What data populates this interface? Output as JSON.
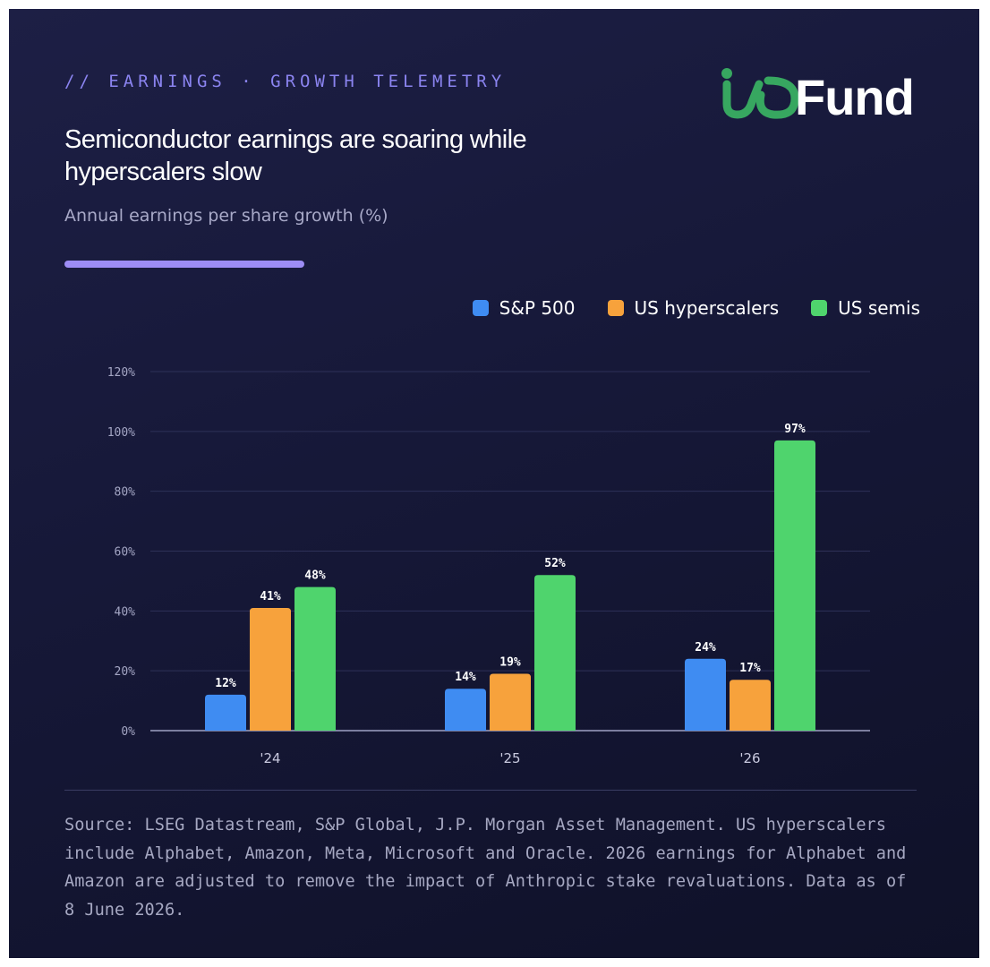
{
  "header": {
    "eyebrow": "// EARNINGS · GROWTH TELEMETRY",
    "title": "Semiconductor earnings are soaring while hyperscalers slow",
    "subtitle": "Annual earnings per share growth (%)"
  },
  "logo": {
    "text": "ioFund",
    "io_color": "#37a760",
    "fund_color": "#ffffff"
  },
  "colors": {
    "accent": "#9d8df5",
    "eyebrow": "#8b84f0",
    "background": "#161838"
  },
  "chart_data": {
    "type": "bar",
    "categories": [
      "'24",
      "'25",
      "'26"
    ],
    "series": [
      {
        "name": "S&P 500",
        "color": "#3f8cf2",
        "values": [
          12,
          14,
          24
        ]
      },
      {
        "name": "US hyperscalers",
        "color": "#f7a23c",
        "values": [
          41,
          19,
          17
        ]
      },
      {
        "name": "US semis",
        "color": "#4fd46d",
        "values": [
          48,
          52,
          97
        ]
      }
    ],
    "y_ticks": [
      "0%",
      "20%",
      "40%",
      "60%",
      "80%",
      "100%",
      "120%"
    ],
    "ylim": [
      0,
      120
    ],
    "value_suffix": "%",
    "grid": true,
    "legend_position": "top-right"
  },
  "footer": {
    "source": "Source: LSEG Datastream, S&P Global, J.P. Morgan Asset Management. US hyperscalers include Alphabet, Amazon, Meta, Microsoft and Oracle. 2026 earnings for Alphabet and Amazon are adjusted to remove the impact of Anthropic stake revaluations. Data as of 8 June 2026."
  }
}
